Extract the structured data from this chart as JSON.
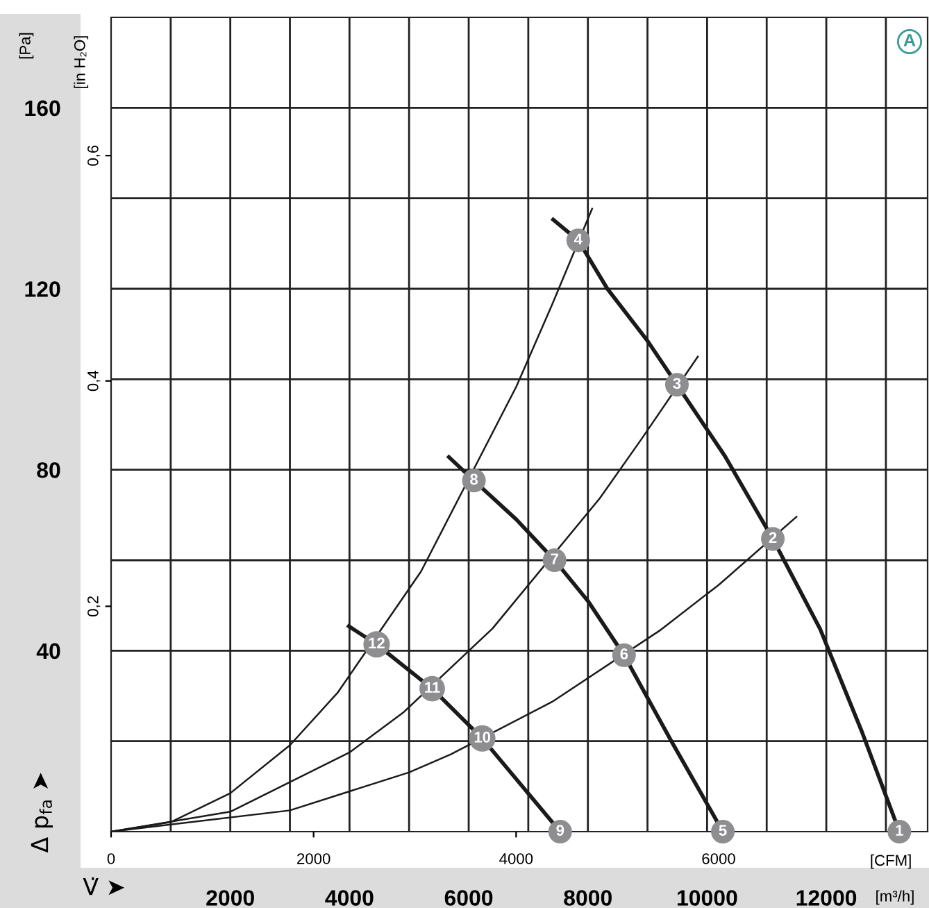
{
  "chart_data": {
    "type": "line",
    "xlabel": "[m³/h]",
    "x2label": "[CFM]",
    "ylabel": "[Pa]",
    "y2label": "[in H₂O]",
    "xlim": [
      0,
      13700
    ],
    "xticks": [
      {
        "value": 1000,
        "label": null
      },
      2000,
      {
        "value": 3000,
        "label": null
      },
      4000,
      {
        "value": 5000,
        "label": null
      },
      6000,
      {
        "value": 7000,
        "label": null
      },
      8000,
      {
        "value": 9000,
        "label": null
      },
      10000,
      {
        "value": 11000,
        "label": null
      },
      12000,
      {
        "value": 13000,
        "label": null
      }
    ],
    "x2lim": [
      0,
      8064
    ],
    "x2ticks": [
      0,
      2000,
      4000,
      6000
    ],
    "ylim": [
      0,
      180
    ],
    "yticks": [
      {
        "value": 20,
        "label": null
      },
      40,
      {
        "value": 60,
        "label": null
      },
      80,
      {
        "value": 100,
        "label": null
      },
      120,
      {
        "value": 140,
        "label": null
      },
      160
    ],
    "y2lim": [
      0,
      0.7227
    ],
    "y2ticks": [
      {
        "value": 0.2,
        "label": "0,2"
      },
      {
        "value": 0.4,
        "label": "0,4"
      },
      {
        "value": 0.6,
        "label": "0,6"
      }
    ],
    "grid": true,
    "series": [
      {
        "color": "#1a1a1a",
        "x": [
          7418,
          7838,
          8327,
          9000,
          9494,
          10300,
          11103,
          11896,
          12600,
          13226
        ],
        "values": [
          135.3,
          130.7,
          120,
          108.5,
          98.8,
          83,
          64.7,
          44.8,
          22,
          0
        ]
      },
      {
        "color": "#1a1a1a",
        "x": [
          5668,
          6088,
          6800,
          7441,
          8000,
          8607,
          9400,
          10264
        ],
        "values": [
          82.8,
          77.6,
          69,
          60,
          51,
          39,
          20,
          0
        ]
      },
      {
        "color": "#1a1a1a",
        "x": [
          3989,
          4455,
          5388,
          6228,
          6900,
          7535
        ],
        "values": [
          45.4,
          41.4,
          31.6,
          20.6,
          10,
          0
        ]
      },
      {
        "color": "#1a1a1a",
        "x": [
          0,
          1000,
          2000,
          3000,
          3800,
          5200,
          6800,
          7400,
          8071
        ],
        "values": [
          0,
          2.1,
          8.5,
          19.1,
          30.7,
          57.5,
          98.4,
          116.5,
          137.7
        ]
      },
      {
        "color": "#1a1a1a",
        "x": [
          0,
          2000,
          4000,
          4900,
          6400,
          8200,
          8900,
          9844
        ],
        "values": [
          0,
          4.4,
          17.5,
          26.3,
          44.9,
          73.7,
          86.8,
          105
        ]
      },
      {
        "color": "#1a1a1a",
        "x": [
          0,
          3000,
          5000,
          5700,
          7400,
          9200,
          10200,
          11500
        ],
        "values": [
          0,
          4.7,
          13.1,
          17.1,
          28.7,
          44.4,
          54.6,
          69.6
        ]
      }
    ],
    "annotations": [
      {
        "text": "1",
        "x": 13226,
        "y": 0
      },
      {
        "text": "2",
        "x": 11103,
        "y": 64.7
      },
      {
        "text": "3",
        "x": 9494,
        "y": 98.8
      },
      {
        "text": "4",
        "x": 7838,
        "y": 130.7
      },
      {
        "text": "5",
        "x": 10264,
        "y": 0
      },
      {
        "text": "6",
        "x": 8607,
        "y": 39
      },
      {
        "text": "7",
        "x": 7441,
        "y": 60
      },
      {
        "text": "8",
        "x": 6088,
        "y": 77.6
      },
      {
        "text": "9",
        "x": 7535,
        "y": 0
      },
      {
        "text": "10",
        "x": 6228,
        "y": 20.6
      },
      {
        "text": "11",
        "x": 5388,
        "y": 31.6
      },
      {
        "text": "12",
        "x": 4455,
        "y": 41.4
      },
      "A",
      "Δ p$_{fa}$ ➤",
      "V̇ ➤"
    ]
  }
}
